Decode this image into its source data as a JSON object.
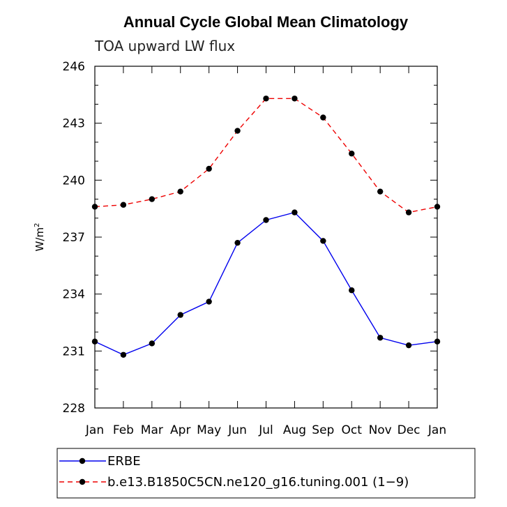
{
  "chart_data": {
    "type": "line",
    "title": "Annual Cycle Global Mean Climatology",
    "subtitle": "TOA upward LW flux",
    "ylabel": "W/m",
    "ylabel_sup": "2",
    "ylim": [
      228,
      246
    ],
    "yticks": [
      228,
      231,
      234,
      237,
      240,
      243,
      246
    ],
    "categories": [
      "Jan",
      "Feb",
      "Mar",
      "Apr",
      "May",
      "Jun",
      "Jul",
      "Aug",
      "Sep",
      "Oct",
      "Nov",
      "Dec",
      "Jan"
    ],
    "grid": false,
    "legend_position": "bottom",
    "series": [
      {
        "name": "ERBE",
        "color": "#0000ee",
        "dash": "solid",
        "values": [
          231.5,
          230.8,
          231.4,
          232.9,
          233.6,
          236.7,
          237.9,
          238.3,
          236.8,
          234.2,
          231.7,
          231.3,
          231.5
        ]
      },
      {
        "name": "b.e13.B1850C5CN.ne120_g16.tuning.001 (1−9)",
        "color": "#ee0000",
        "dash": "dashed",
        "values": [
          238.6,
          238.7,
          239.0,
          239.4,
          240.6,
          242.6,
          244.3,
          244.3,
          243.3,
          241.4,
          239.4,
          238.3,
          238.6
        ]
      }
    ]
  }
}
